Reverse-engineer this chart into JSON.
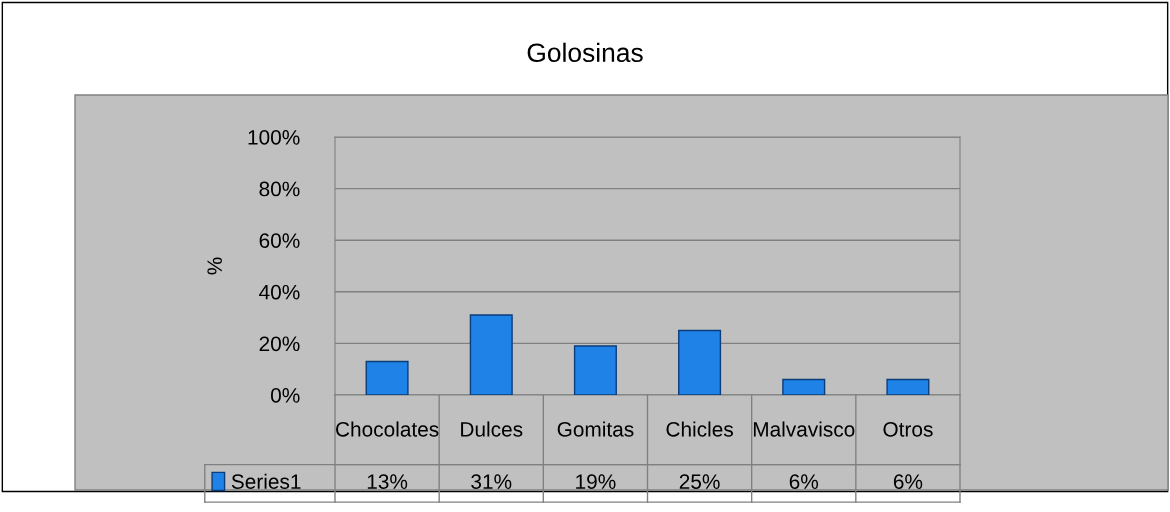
{
  "chart_data": {
    "type": "bar",
    "title": "Golosinas",
    "ylabel": "%",
    "categories": [
      "Chocolates",
      "Dulces",
      "Gomitas",
      "Chicles",
      "Malvavisco",
      "Otros"
    ],
    "series": [
      {
        "name": "Series1",
        "color": "#1f82e6",
        "values": [
          13,
          31,
          19,
          25,
          6,
          6
        ]
      }
    ],
    "ylim": [
      0,
      100
    ],
    "yticks": [
      {
        "value": 0,
        "label": "0%"
      },
      {
        "value": 20,
        "label": "20%"
      },
      {
        "value": 40,
        "label": "40%"
      },
      {
        "value": 60,
        "label": "60%"
      },
      {
        "value": 80,
        "label": "80%"
      },
      {
        "value": 100,
        "label": "100%"
      }
    ],
    "grid": "y",
    "value_labels": [
      "13%",
      "31%",
      "19%",
      "25%",
      "6%",
      "6%"
    ]
  }
}
